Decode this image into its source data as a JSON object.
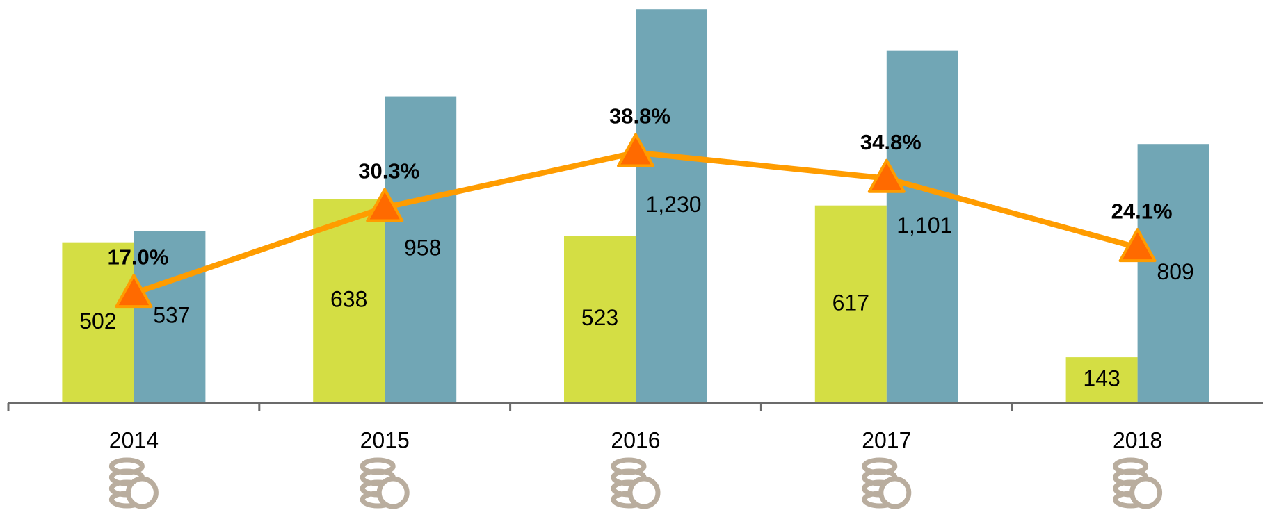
{
  "chart_data": {
    "type": "bar",
    "categories": [
      "2014",
      "2015",
      "2016",
      "2017",
      "2018"
    ],
    "series": [
      {
        "color": "#d4de44",
        "values": [
          502,
          638,
          523,
          617,
          143
        ]
      },
      {
        "color": "#71a6b5",
        "values": [
          537,
          958,
          1230,
          1101,
          809
        ]
      },
      {
        "type": "line",
        "axis": "y2",
        "color": "#ff9c00",
        "marker_color": "#ff6a00",
        "values": [
          17.0,
          30.3,
          38.8,
          34.8,
          24.1
        ],
        "value_labels": [
          "17.0%",
          "30.3%",
          "38.8%",
          "34.8%",
          "24.1%"
        ]
      }
    ],
    "value_labels": [
      [
        "502",
        "638",
        "523",
        "617",
        "143"
      ],
      [
        "537",
        "958",
        "1,230",
        "1,101",
        "809"
      ]
    ],
    "ylim": [
      0,
      1250
    ],
    "y2lim": [
      0,
      62
    ]
  }
}
